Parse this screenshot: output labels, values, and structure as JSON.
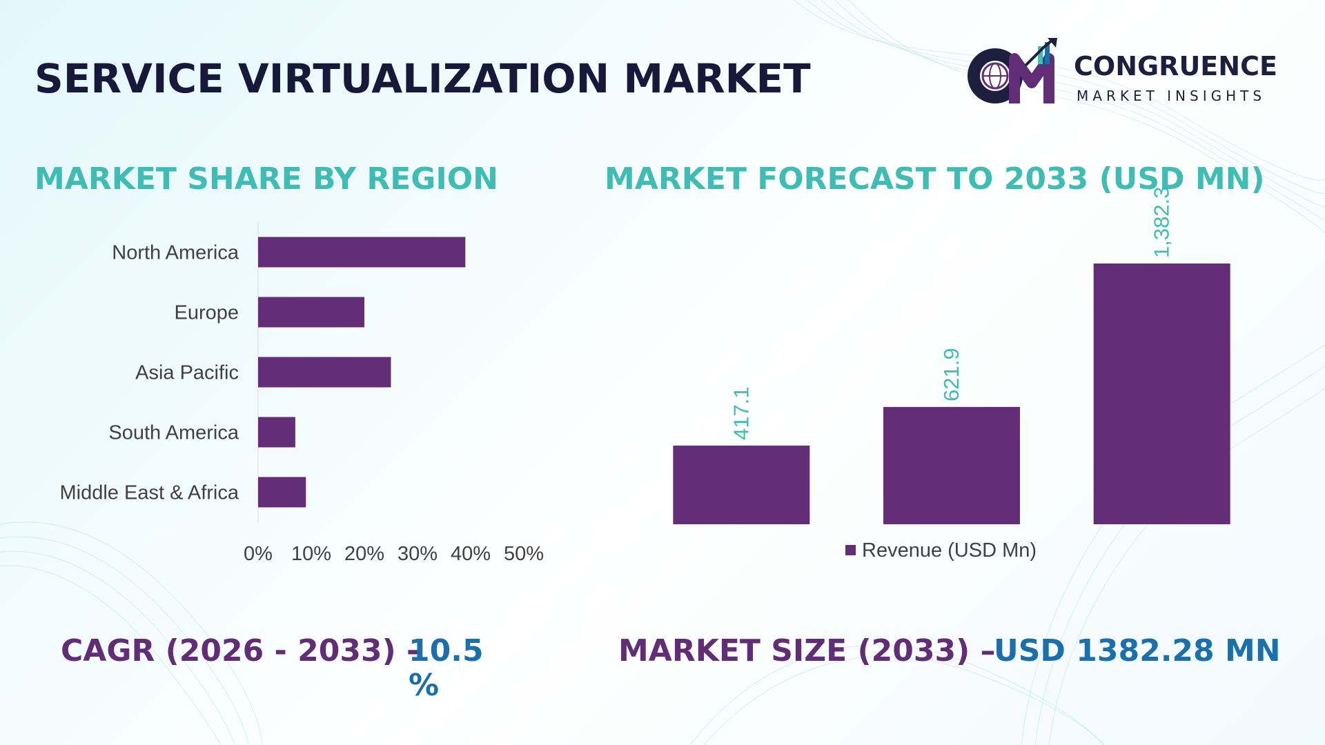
{
  "header": {
    "title": "SERVICE VIRTUALIZATION MARKET"
  },
  "logo": {
    "name": "CONGRUENCE",
    "subtitle": "MARKET INSIGHTS",
    "monogram": "CM"
  },
  "colors": {
    "bar": "#642d78",
    "title": "#16193a",
    "section_title": "#3fbcb3",
    "data_label": "#3fbcb3",
    "footer_label": "#612d77",
    "footer_value": "#1b6faa"
  },
  "left_section": {
    "title": "MARKET SHARE BY REGION"
  },
  "right_section": {
    "title": "MARKET FORECAST TO 2033 (USD MN)"
  },
  "chart_data": [
    {
      "type": "bar",
      "orientation": "horizontal",
      "categories": [
        "North America",
        "Europe",
        "Asia Pacific",
        "South America",
        "Middle East & Africa"
      ],
      "values": [
        39,
        20,
        25,
        7,
        9
      ],
      "value_unit": "%",
      "xlim": [
        0,
        50
      ],
      "xticks": [
        "0%",
        "10%",
        "20%",
        "30%",
        "40%",
        "50%"
      ],
      "grid": false,
      "legend": "none"
    },
    {
      "type": "bar",
      "orientation": "vertical",
      "categories": [
        "",
        "",
        ""
      ],
      "series": [
        {
          "name": "Revenue (USD Mn)",
          "values": [
            417.1,
            621.9,
            1382.3
          ],
          "labels": [
            "417.1",
            "621.9",
            "1,382.3"
          ]
        }
      ],
      "ylim": [
        0,
        1382.3
      ],
      "grid": false,
      "legend": "bottom"
    }
  ],
  "footer": {
    "cagr_label": "CAGR (2026 - 2033) -",
    "cagr_value": "10.5",
    "cagr_unit": "%",
    "market_size_label": "MARKET SIZE (2033) –",
    "market_size_value": "USD 1382.28 MN"
  }
}
